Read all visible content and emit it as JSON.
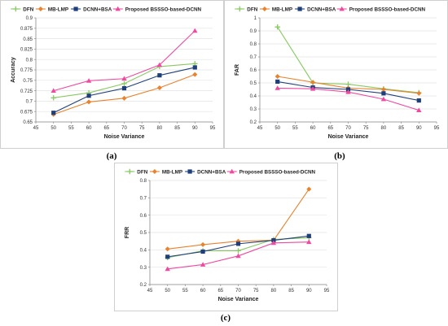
{
  "figure": {
    "captions": [
      "(a)",
      "(b)",
      "(c)"
    ]
  },
  "chart_data": [
    {
      "type": "line",
      "ylabel": "Accuracy",
      "xlabel": "Noise Variance",
      "x": [
        50,
        60,
        70,
        80,
        90
      ],
      "xlim": [
        45,
        95
      ],
      "xticks": [
        45,
        50,
        55,
        60,
        65,
        70,
        75,
        80,
        85,
        90,
        95
      ],
      "ylim": [
        0.65,
        0.9
      ],
      "yticks": [
        0.65,
        0.675,
        0.7,
        0.725,
        0.75,
        0.775,
        0.8,
        0.825,
        0.85,
        0.875,
        0.9
      ],
      "ytick_labels": [
        "0.65",
        "0.675",
        "0.7",
        "0.725",
        "0.75",
        "0.775",
        "0.8",
        "0.825",
        "0.85",
        "0.875",
        "0.9"
      ],
      "legend": "top",
      "series": [
        {
          "name": "DFN",
          "color": "#8ac864",
          "marker": "plus",
          "values": [
            0.708,
            0.72,
            0.742,
            0.783,
            0.79
          ]
        },
        {
          "name": "MB-LMP",
          "color": "#e8822e",
          "marker": "diamond",
          "values": [
            0.668,
            0.698,
            0.707,
            0.732,
            0.764
          ]
        },
        {
          "name": "DCNN+BSA",
          "color": "#1f3f7a",
          "marker": "square",
          "values": [
            0.672,
            0.713,
            0.731,
            0.762,
            0.781
          ]
        },
        {
          "name": "Proposed BSSSO-based-DCNN",
          "color": "#ee4aa0",
          "marker": "triangle",
          "values": [
            0.725,
            0.749,
            0.754,
            0.787,
            0.869
          ]
        }
      ]
    },
    {
      "type": "line",
      "ylabel": "FAR",
      "xlabel": "Noise Variance",
      "x": [
        50,
        60,
        70,
        80,
        90
      ],
      "xlim": [
        45,
        95
      ],
      "xticks": [
        45,
        50,
        55,
        60,
        65,
        70,
        75,
        80,
        85,
        90,
        95
      ],
      "ylim": [
        0.2,
        1.0
      ],
      "yticks": [
        0.2,
        0.3,
        0.4,
        0.5,
        0.6,
        0.7,
        0.8,
        0.9,
        1.0
      ],
      "ytick_labels": [
        "0.2",
        "0.3",
        "0.4",
        "0.5",
        "0.6",
        "0.7",
        "0.8",
        "0.9",
        "1"
      ],
      "legend": "top",
      "series": [
        {
          "name": "DFN",
          "color": "#8ac864",
          "marker": "plus",
          "values": [
            0.93,
            0.5,
            0.49,
            0.455,
            0.425
          ]
        },
        {
          "name": "MB-LMP",
          "color": "#e8822e",
          "marker": "diamond",
          "values": [
            0.55,
            0.505,
            0.46,
            0.45,
            0.42
          ]
        },
        {
          "name": "DCNN+BSA",
          "color": "#1f3f7a",
          "marker": "square",
          "values": [
            0.51,
            0.465,
            0.45,
            0.42,
            0.365
          ]
        },
        {
          "name": "Proposed BSSSO-based-DCNN",
          "color": "#ee4aa0",
          "marker": "triangle",
          "values": [
            0.46,
            0.455,
            0.43,
            0.375,
            0.29
          ]
        }
      ]
    },
    {
      "type": "line",
      "ylabel": "FRR",
      "xlabel": "Noise Variance",
      "x": [
        50,
        60,
        70,
        80,
        90
      ],
      "xlim": [
        45,
        95
      ],
      "xticks": [
        45,
        50,
        55,
        60,
        65,
        70,
        75,
        80,
        85,
        90,
        95
      ],
      "ylim": [
        0.2,
        0.8
      ],
      "yticks": [
        0.2,
        0.3,
        0.4,
        0.5,
        0.6,
        0.7,
        0.8
      ],
      "ytick_labels": [
        "0.2",
        "0.3",
        "0.4",
        "0.5",
        "0.6",
        "0.7",
        "0.8"
      ],
      "legend": "top",
      "series": [
        {
          "name": "DFN",
          "color": "#8ac864",
          "marker": "plus",
          "values": [
            0.355,
            0.395,
            0.395,
            0.46,
            0.47
          ]
        },
        {
          "name": "MB-LMP",
          "color": "#e8822e",
          "marker": "diamond",
          "values": [
            0.405,
            0.43,
            0.45,
            0.455,
            0.75
          ]
        },
        {
          "name": "DCNN+BSA",
          "color": "#1f3f7a",
          "marker": "square",
          "values": [
            0.36,
            0.39,
            0.435,
            0.455,
            0.48
          ]
        },
        {
          "name": "Proposed BSSSO-based-DCNN",
          "color": "#ee4aa0",
          "marker": "triangle",
          "values": [
            0.29,
            0.315,
            0.365,
            0.44,
            0.445
          ]
        }
      ]
    }
  ]
}
